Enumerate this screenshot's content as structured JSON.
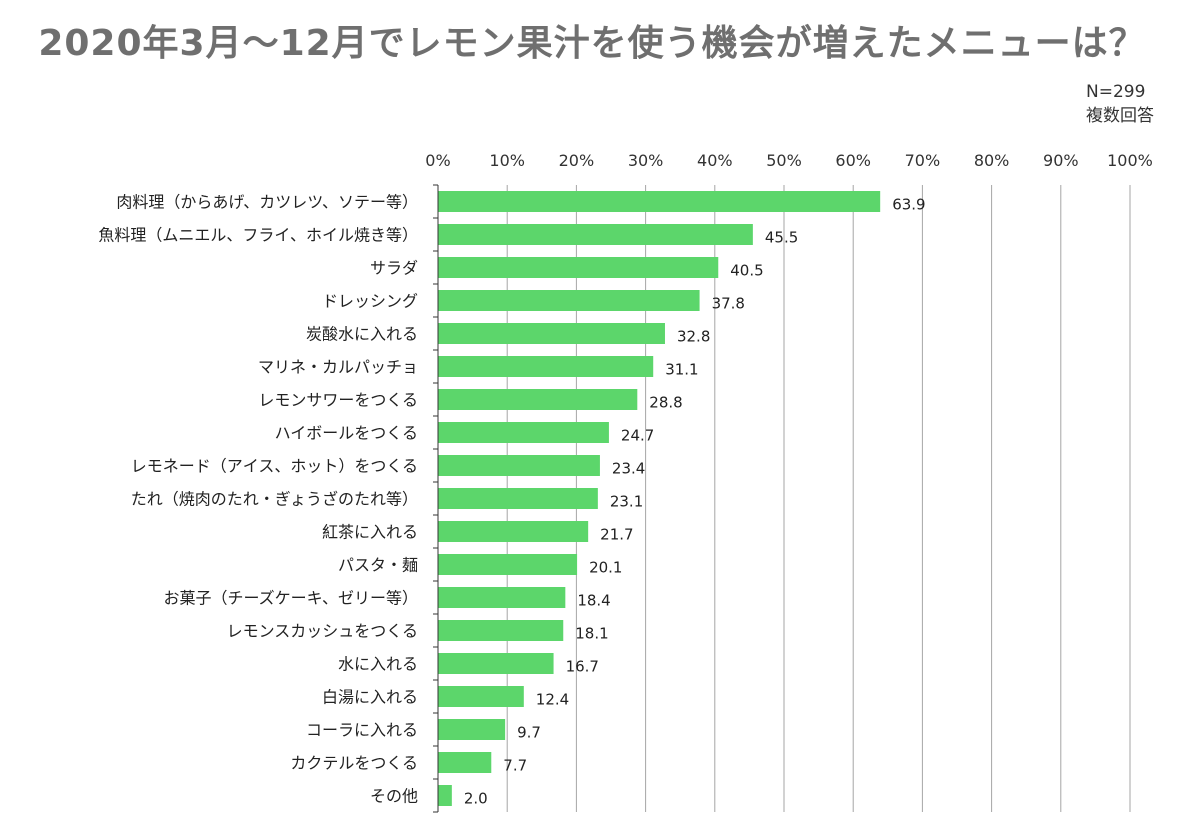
{
  "title": "2020年3月～12月でレモン果汁を使う機会が増えたメニューは？",
  "note": {
    "n": "N=299",
    "multi": "複数回答"
  },
  "colors": {
    "bar": "#5cd66b",
    "grid": "#a6a6a6",
    "axis": "#333333"
  },
  "chart_data": {
    "type": "bar",
    "orientation": "horizontal",
    "title": "2020年3月～12月でレモン果汁を使う機会が増えたメニューは？",
    "xlim": [
      0,
      100
    ],
    "xticks": [
      "0%",
      "10%",
      "20%",
      "30%",
      "40%",
      "50%",
      "60%",
      "70%",
      "80%",
      "90%",
      "100%"
    ],
    "categories": [
      "肉料理（からあげ、カツレツ、ソテー等）",
      "魚料理（ムニエル、フライ、ホイル焼き等）",
      "サラダ",
      "ドレッシング",
      "炭酸水に入れる",
      "マリネ・カルパッチョ",
      "レモンサワーをつくる",
      "ハイボールをつくる",
      "レモネード（アイス、ホット）をつくる",
      "たれ（焼肉のたれ・ぎょうざのたれ等）",
      "紅茶に入れる",
      "パスタ・麺",
      "お菓子（チーズケーキ、ゼリー等）",
      "レモンスカッシュをつくる",
      "水に入れる",
      "白湯に入れる",
      "コーラに入れる",
      "カクテルをつくる",
      "その他"
    ],
    "values": [
      63.9,
      45.5,
      40.5,
      37.8,
      32.8,
      31.1,
      28.8,
      24.7,
      23.4,
      23.1,
      21.7,
      20.1,
      18.4,
      18.1,
      16.7,
      12.4,
      9.7,
      7.7,
      2.0
    ],
    "value_labels": [
      "63.9",
      "45.5",
      "40.5",
      "37.8",
      "32.8",
      "31.1",
      "28.8",
      "24.7",
      "23.4",
      "23.1",
      "21.7",
      "20.1",
      "18.4",
      "18.1",
      "16.7",
      "12.4",
      "9.7",
      "7.7",
      "2.0"
    ],
    "legend": "none",
    "grid": true
  }
}
